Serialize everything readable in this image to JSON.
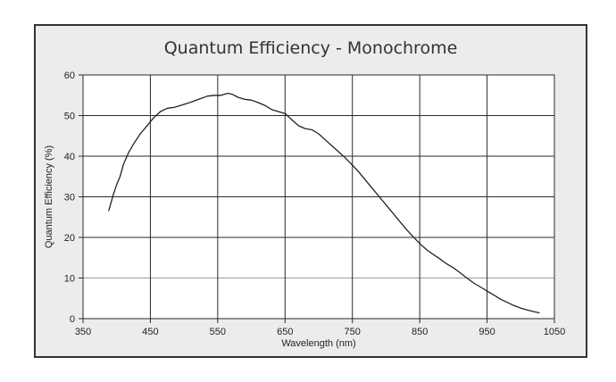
{
  "chart_data": {
    "type": "line",
    "title": "Quantum Efficiency - Monochrome",
    "xlabel": "Wavelength (nm)",
    "ylabel": "Quantum Efficiency (%)",
    "xlim": [
      350,
      1050
    ],
    "ylim": [
      0,
      60
    ],
    "xticks": [
      350,
      450,
      550,
      650,
      750,
      850,
      950,
      1050
    ],
    "yticks": [
      0,
      10,
      20,
      30,
      40,
      50,
      60
    ],
    "grid": true,
    "series": [
      {
        "color": "#222222",
        "points": [
          [
            388,
            26.5
          ],
          [
            395,
            30.5
          ],
          [
            400,
            33
          ],
          [
            405,
            35
          ],
          [
            410,
            38
          ],
          [
            418,
            41
          ],
          [
            425,
            43
          ],
          [
            435,
            45.5
          ],
          [
            445,
            47.5
          ],
          [
            455,
            49.5
          ],
          [
            465,
            51
          ],
          [
            475,
            51.8
          ],
          [
            485,
            52
          ],
          [
            495,
            52.5
          ],
          [
            505,
            53
          ],
          [
            515,
            53.6
          ],
          [
            525,
            54.2
          ],
          [
            535,
            54.8
          ],
          [
            545,
            55
          ],
          [
            555,
            55
          ],
          [
            565,
            55.5
          ],
          [
            572,
            55.2
          ],
          [
            580,
            54.5
          ],
          [
            590,
            54
          ],
          [
            600,
            53.8
          ],
          [
            610,
            53.2
          ],
          [
            620,
            52.5
          ],
          [
            630,
            51.5
          ],
          [
            640,
            51
          ],
          [
            650,
            50.5
          ],
          [
            660,
            49
          ],
          [
            670,
            47.5
          ],
          [
            680,
            46.8
          ],
          [
            690,
            46.5
          ],
          [
            700,
            45.5
          ],
          [
            710,
            44
          ],
          [
            720,
            42.5
          ],
          [
            730,
            41
          ],
          [
            740,
            39.5
          ],
          [
            750,
            37.8
          ],
          [
            760,
            36
          ],
          [
            770,
            34
          ],
          [
            780,
            32
          ],
          [
            790,
            30
          ],
          [
            800,
            28
          ],
          [
            810,
            26
          ],
          [
            820,
            24
          ],
          [
            830,
            22
          ],
          [
            840,
            20.2
          ],
          [
            850,
            18.5
          ],
          [
            860,
            17
          ],
          [
            870,
            15.8
          ],
          [
            880,
            14.7
          ],
          [
            890,
            13.5
          ],
          [
            900,
            12.5
          ],
          [
            910,
            11.3
          ],
          [
            920,
            10
          ],
          [
            930,
            8.8
          ],
          [
            940,
            7.8
          ],
          [
            950,
            6.8
          ],
          [
            960,
            5.8
          ],
          [
            970,
            4.8
          ],
          [
            980,
            4
          ],
          [
            990,
            3.2
          ],
          [
            1000,
            2.6
          ],
          [
            1010,
            2.1
          ],
          [
            1020,
            1.7
          ],
          [
            1028,
            1.4
          ]
        ]
      }
    ]
  }
}
